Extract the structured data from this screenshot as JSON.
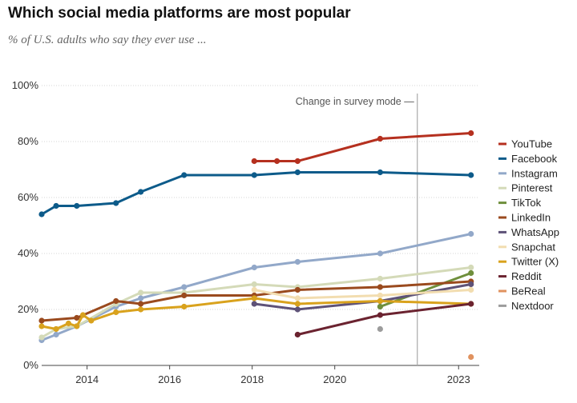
{
  "header": {
    "title": "Which social media platforms are most popular",
    "subtitle": "% of U.S. adults who say they ever use ..."
  },
  "chart_data": {
    "type": "line",
    "title": "Which social media platforms are most popular",
    "subtitle": "% of U.S. adults who say they ever use ...",
    "xlabel": "",
    "ylabel": "",
    "xlim": [
      2012.9,
      2023.5
    ],
    "ylim": [
      0,
      100
    ],
    "x_ticks": [
      {
        "value": 2014,
        "label": "2014"
      },
      {
        "value": 2016,
        "label": "2016"
      },
      {
        "value": 2018,
        "label": "2018"
      },
      {
        "value": 2020,
        "label": "2020"
      },
      {
        "value": 2023,
        "label": "2023"
      }
    ],
    "y_ticks": [
      {
        "value": 0,
        "label": "0%"
      },
      {
        "value": 20,
        "label": "20%"
      },
      {
        "value": 40,
        "label": "40%"
      },
      {
        "value": 60,
        "label": "60%"
      },
      {
        "value": 80,
        "label": "80%"
      },
      {
        "value": 100,
        "label": "100%"
      }
    ],
    "grid": true,
    "legend_position": "right",
    "annotation": {
      "text": "Change in survey mode",
      "x": 2022.0
    },
    "series": [
      {
        "name": "YouTube",
        "color": "#b5301f",
        "points": [
          [
            2018.05,
            73
          ],
          [
            2018.6,
            73
          ],
          [
            2019.1,
            73
          ],
          [
            2021.1,
            81
          ],
          [
            2023.3,
            83
          ]
        ]
      },
      {
        "name": "Facebook",
        "color": "#0d5b8a",
        "points": [
          [
            2012.9,
            54
          ],
          [
            2013.25,
            57
          ],
          [
            2013.75,
            57
          ],
          [
            2014.7,
            58
          ],
          [
            2015.3,
            62
          ],
          [
            2016.35,
            68
          ],
          [
            2018.05,
            68
          ],
          [
            2019.1,
            69
          ],
          [
            2021.1,
            69
          ],
          [
            2023.3,
            68
          ]
        ]
      },
      {
        "name": "Instagram",
        "color": "#92a8c9",
        "points": [
          [
            2012.9,
            9
          ],
          [
            2013.25,
            11
          ],
          [
            2013.75,
            14
          ],
          [
            2014.7,
            21
          ],
          [
            2015.3,
            24
          ],
          [
            2016.35,
            28
          ],
          [
            2018.05,
            35
          ],
          [
            2019.1,
            37
          ],
          [
            2021.1,
            40
          ],
          [
            2023.3,
            47
          ]
        ]
      },
      {
        "name": "Pinterest",
        "color": "#d4dab8",
        "points": [
          [
            2012.9,
            10
          ],
          [
            2013.25,
            13
          ],
          [
            2013.75,
            14
          ],
          [
            2014.7,
            22
          ],
          [
            2015.3,
            26
          ],
          [
            2016.35,
            26
          ],
          [
            2018.05,
            29
          ],
          [
            2019.1,
            28
          ],
          [
            2021.1,
            31
          ],
          [
            2023.3,
            35
          ]
        ]
      },
      {
        "name": "TikTok",
        "color": "#6f8f3c",
        "points": [
          [
            2021.1,
            21
          ],
          [
            2023.3,
            33
          ]
        ]
      },
      {
        "name": "LinkedIn",
        "color": "#9a4a1e",
        "points": [
          [
            2012.9,
            16
          ],
          [
            2013.75,
            17
          ],
          [
            2014.7,
            23
          ],
          [
            2015.3,
            22
          ],
          [
            2016.35,
            25
          ],
          [
            2018.05,
            25
          ],
          [
            2019.1,
            27
          ],
          [
            2021.1,
            28
          ],
          [
            2023.3,
            30
          ]
        ]
      },
      {
        "name": "WhatsApp",
        "color": "#5e5278",
        "points": [
          [
            2018.05,
            22
          ],
          [
            2019.1,
            20
          ],
          [
            2021.1,
            23
          ],
          [
            2023.3,
            29
          ]
        ]
      },
      {
        "name": "Snapchat",
        "color": "#f2ddb0",
        "points": [
          [
            2018.05,
            27
          ],
          [
            2019.1,
            24
          ],
          [
            2021.1,
            25
          ],
          [
            2023.3,
            27
          ]
        ]
      },
      {
        "name": "Twitter (X)",
        "color": "#d9a21d",
        "points": [
          [
            2012.9,
            14
          ],
          [
            2013.25,
            13
          ],
          [
            2013.55,
            15
          ],
          [
            2013.75,
            14
          ],
          [
            2013.9,
            18
          ],
          [
            2014.1,
            16
          ],
          [
            2014.7,
            19
          ],
          [
            2015.3,
            20
          ],
          [
            2016.35,
            21
          ],
          [
            2018.05,
            24
          ],
          [
            2019.1,
            22
          ],
          [
            2021.1,
            23
          ],
          [
            2023.3,
            22
          ]
        ]
      },
      {
        "name": "Reddit",
        "color": "#6b2330",
        "points": [
          [
            2019.1,
            11
          ],
          [
            2021.1,
            18
          ],
          [
            2023.3,
            22
          ]
        ]
      },
      {
        "name": "BeReal",
        "color": "#e0925f",
        "points": [
          [
            2023.3,
            3
          ]
        ]
      },
      {
        "name": "Nextdoor",
        "color": "#9c9c9c",
        "points": [
          [
            2021.1,
            13
          ]
        ]
      }
    ]
  }
}
